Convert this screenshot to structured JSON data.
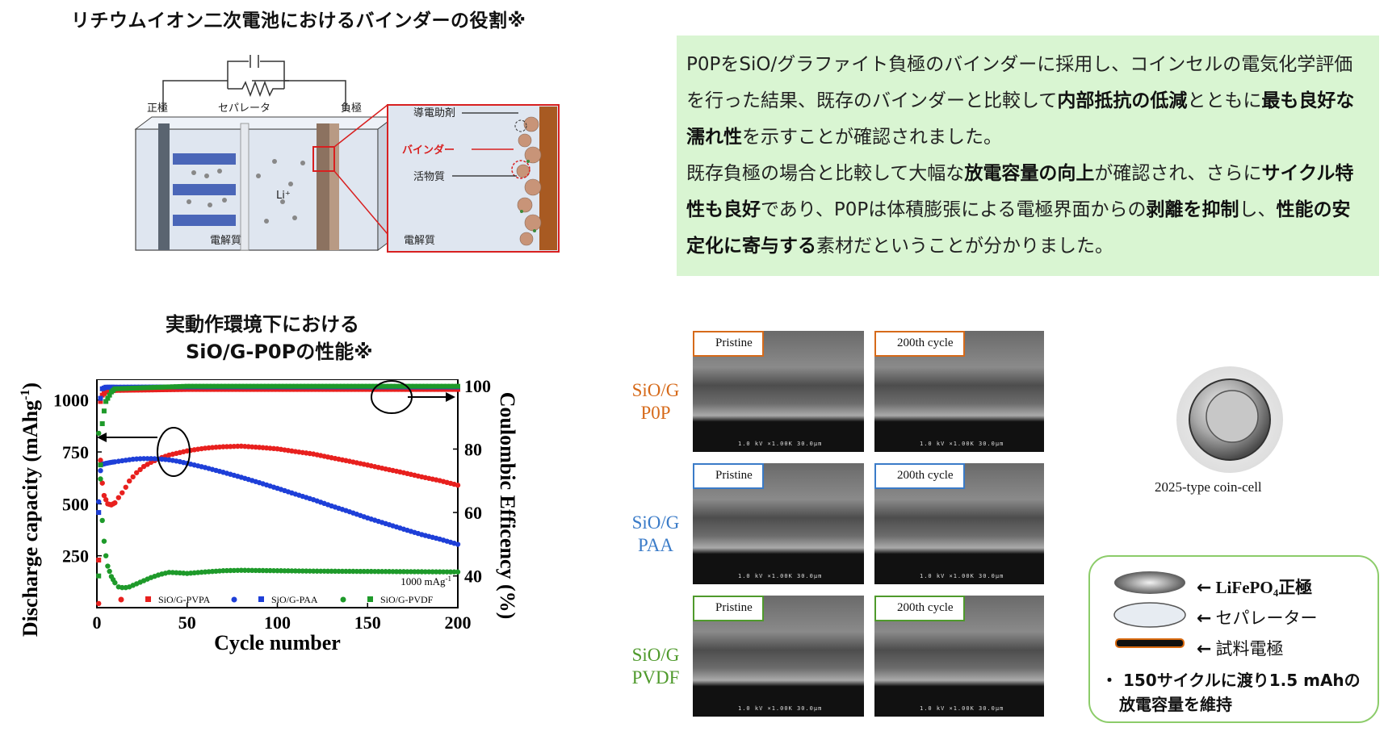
{
  "title_top": "リチウムイオン二次電池におけるバインダーの役割※",
  "diagram": {
    "positive_label": "正極",
    "separator_label": "セパレータ",
    "negative_label": "負極",
    "li_label": "Li⁺",
    "electrolyte_left": "電解質",
    "electrolyte_right": "電解質",
    "conductive_label": "導電助剤",
    "binder_label": "バインダー",
    "active_label": "活物質"
  },
  "summary": {
    "p1_a": "P0PをSiO/グラファイト負極のバインダーに採用し、コインセルの電気化学評価を行った結果、既存のバインダーと比較して",
    "p1_b": "内部抵抗の低減",
    "p1_c": "とともに",
    "p1_d": "最も良好な濡れ性",
    "p1_e": "を示すことが確認されました。",
    "p2_a": "既存負極の場合と比較して大幅な",
    "p2_b": "放電容量の向上",
    "p2_c": "が確認され、さらに",
    "p2_d": "サイクル特性も良好",
    "p2_e": "であり、P0Pは体積膨張による電極界面からの",
    "p2_f": "剥離を抑制",
    "p2_g": "し、",
    "p2_h": "性能の安定化に寄与する",
    "p2_i": "素材だということが分かりました。"
  },
  "chart_title_line1": "実動作環境下における",
  "chart_title_line2": "SiO/G-P0Pの性能※",
  "chart_data": {
    "type": "scatter",
    "xlabel": "Cycle number",
    "ylabel": "Discharge capacity (mAhg",
    "ylabel_sup": "-1",
    "ylabel_end": ")",
    "y2label": "Coulombic Efficency (%)",
    "xlim": [
      0,
      200
    ],
    "ylim": [
      0,
      1100
    ],
    "y2lim": [
      30,
      102
    ],
    "xticks": [
      "0",
      "50",
      "100",
      "150",
      "200"
    ],
    "yticks": [
      "250",
      "500",
      "750",
      "1000"
    ],
    "y2ticks": [
      "40",
      "60",
      "80",
      "100"
    ],
    "annotation": "1000 mAg",
    "annotation_sup": "-1",
    "legend": [
      "SiO/G-PVPA",
      "SiO/G-PAA",
      "SiO/G-PVDF"
    ],
    "series": [
      {
        "name": "SiO/G-PVPA",
        "color": "#e8201e",
        "capacity": [
          [
            1,
            20
          ],
          [
            2,
            710
          ],
          [
            3,
            600
          ],
          [
            4,
            540
          ],
          [
            5,
            520
          ],
          [
            6,
            500
          ],
          [
            8,
            495
          ],
          [
            10,
            505
          ],
          [
            12,
            530
          ],
          [
            15,
            565
          ],
          [
            18,
            610
          ],
          [
            22,
            650
          ],
          [
            26,
            680
          ],
          [
            30,
            700
          ],
          [
            35,
            720
          ],
          [
            40,
            735
          ],
          [
            45,
            745
          ],
          [
            50,
            755
          ],
          [
            55,
            762
          ],
          [
            60,
            768
          ],
          [
            65,
            772
          ],
          [
            70,
            775
          ],
          [
            80,
            778
          ],
          [
            90,
            772
          ],
          [
            100,
            765
          ],
          [
            110,
            752
          ],
          [
            120,
            740
          ],
          [
            130,
            722
          ],
          [
            140,
            705
          ],
          [
            150,
            687
          ],
          [
            160,
            668
          ],
          [
            170,
            650
          ],
          [
            180,
            630
          ],
          [
            190,
            612
          ],
          [
            200,
            590
          ]
        ],
        "ce": [
          [
            1,
            45
          ],
          [
            2,
            95
          ],
          [
            3,
            97
          ],
          [
            5,
            98
          ],
          [
            10,
            98.5
          ],
          [
            50,
            98.8
          ],
          [
            100,
            98.8
          ],
          [
            150,
            98.8
          ],
          [
            200,
            98.8
          ]
        ]
      },
      {
        "name": "SiO/G-PAA",
        "color": "#1e3fd8",
        "capacity": [
          [
            1,
            510
          ],
          [
            2,
            660
          ],
          [
            3,
            690
          ],
          [
            5,
            695
          ],
          [
            8,
            700
          ],
          [
            12,
            705
          ],
          [
            16,
            710
          ],
          [
            20,
            715
          ],
          [
            25,
            718
          ],
          [
            30,
            718
          ],
          [
            35,
            716
          ],
          [
            40,
            712
          ],
          [
            45,
            705
          ],
          [
            50,
            695
          ],
          [
            60,
            675
          ],
          [
            70,
            652
          ],
          [
            80,
            628
          ],
          [
            90,
            602
          ],
          [
            100,
            575
          ],
          [
            110,
            547
          ],
          [
            120,
            520
          ],
          [
            130,
            490
          ],
          [
            140,
            462
          ],
          [
            150,
            432
          ],
          [
            160,
            405
          ],
          [
            170,
            378
          ],
          [
            180,
            352
          ],
          [
            190,
            330
          ],
          [
            200,
            305
          ]
        ],
        "ce": [
          [
            1,
            60
          ],
          [
            2,
            96
          ],
          [
            3,
            99
          ],
          [
            5,
            99.5
          ],
          [
            50,
            99.6
          ],
          [
            100,
            99.6
          ],
          [
            150,
            99.6
          ],
          [
            200,
            99.6
          ]
        ]
      },
      {
        "name": "SiO/G-PVDF",
        "color": "#1e9a2a",
        "capacity": [
          [
            1,
            840
          ],
          [
            2,
            620
          ],
          [
            3,
            420
          ],
          [
            4,
            320
          ],
          [
            5,
            250
          ],
          [
            6,
            200
          ],
          [
            8,
            150
          ],
          [
            10,
            120
          ],
          [
            12,
            100
          ],
          [
            15,
            95
          ],
          [
            18,
            100
          ],
          [
            22,
            115
          ],
          [
            26,
            130
          ],
          [
            30,
            145
          ],
          [
            35,
            160
          ],
          [
            40,
            170
          ],
          [
            45,
            168
          ],
          [
            50,
            165
          ],
          [
            60,
            172
          ],
          [
            70,
            178
          ],
          [
            80,
            180
          ],
          [
            100,
            178
          ],
          [
            120,
            176
          ],
          [
            140,
            175
          ],
          [
            160,
            174
          ],
          [
            180,
            173
          ],
          [
            200,
            172
          ]
        ],
        "ce": [
          [
            1,
            40
          ],
          [
            2,
            75
          ],
          [
            3,
            88
          ],
          [
            4,
            92
          ],
          [
            5,
            95
          ],
          [
            8,
            98
          ],
          [
            10,
            99
          ],
          [
            50,
            99.8
          ],
          [
            100,
            99.8
          ],
          [
            150,
            99.8
          ],
          [
            200,
            99.8
          ]
        ]
      }
    ]
  },
  "sem": {
    "rows": [
      {
        "label_l1": "SiO/G",
        "label_l2": "P0P",
        "color": "#d66a1a"
      },
      {
        "label_l1": "SiO/G",
        "label_l2": "PAA",
        "color": "#3a7bc8"
      },
      {
        "label_l1": "SiO/G",
        "label_l2": "PVDF",
        "color": "#4f9a2c"
      }
    ],
    "tag_pristine": "Pristine",
    "tag_cycle": "200th cycle",
    "scale_text": "1.0 kV ×1.00K 30.0μm"
  },
  "coin": {
    "caption": "2025-type coin-cell",
    "layer1_label": "LiFePO",
    "layer1_sub": "4",
    "layer1_suffix": "正極",
    "layer2_label": "セパレーター",
    "layer3_label": "試料電極",
    "note_line1": "・ 150サイクルに渡り1.5 mAhの",
    "note_line2": "放電容量を維持"
  }
}
